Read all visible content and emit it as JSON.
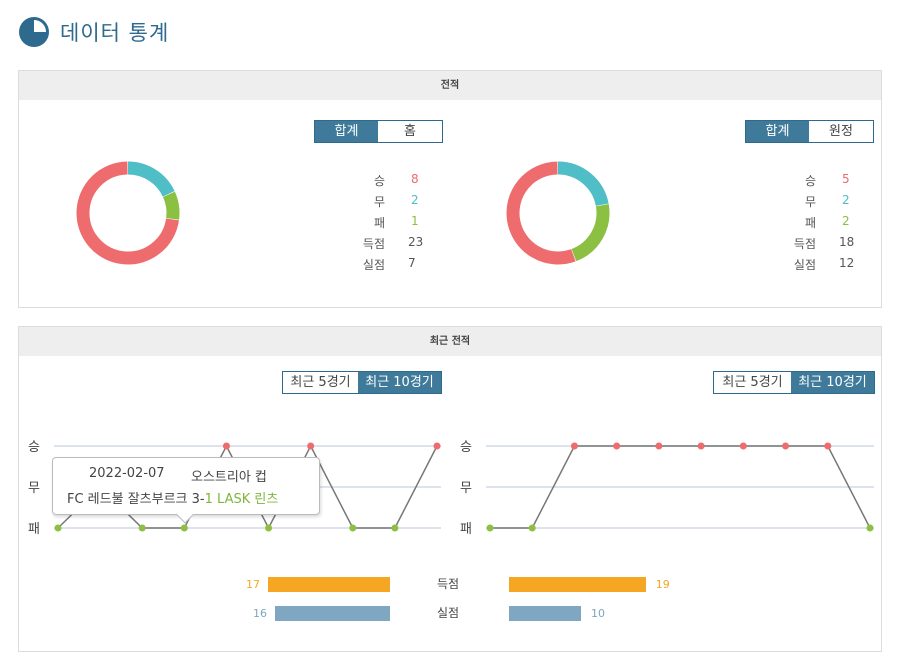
{
  "header": {
    "title": "데이터 통계"
  },
  "colors": {
    "win": "#ee6b6e",
    "draw": "#4fbec6",
    "loss": "#8cc043",
    "accent": "#3f7a9b",
    "gf": "#f5a623",
    "ga": "#7fa7c1"
  },
  "record": {
    "title": "전적",
    "left": {
      "tabs": [
        "합계",
        "홈"
      ],
      "active": 0,
      "stats": [
        {
          "label": "승",
          "value": "8"
        },
        {
          "label": "무",
          "value": "2"
        },
        {
          "label": "패",
          "value": "1"
        },
        {
          "label": "득점",
          "value": "23"
        },
        {
          "label": "실점",
          "value": "7"
        }
      ]
    },
    "right": {
      "tabs": [
        "합계",
        "원정"
      ],
      "active": 0,
      "stats": [
        {
          "label": "승",
          "value": "5"
        },
        {
          "label": "무",
          "value": "2"
        },
        {
          "label": "패",
          "value": "2"
        },
        {
          "label": "득점",
          "value": "18"
        },
        {
          "label": "실점",
          "value": "12"
        }
      ]
    }
  },
  "recent": {
    "title": "최근 전적",
    "left": {
      "tabs": [
        "최근 5경기",
        "최근 10경기"
      ],
      "active": 1,
      "results": [
        "L",
        "D",
        "L",
        "L",
        "W",
        "L",
        "W",
        "L",
        "L",
        "W"
      ]
    },
    "right": {
      "tabs": [
        "최근 5경기",
        "최근 10경기"
      ],
      "active": 1,
      "results": [
        "L",
        "L",
        "W",
        "W",
        "W",
        "W",
        "W",
        "W",
        "W",
        "L"
      ]
    },
    "y_labels": [
      "승",
      "무",
      "패"
    ],
    "tooltip": {
      "date": "2022-02-07",
      "competition": "오스트리아 컵",
      "home": "FC 레드불 잘츠부르크",
      "score_home": "3",
      "sep": "-",
      "score_away": "1",
      "away": "LASK 린츠"
    },
    "bars": {
      "gf": {
        "label": "득점",
        "left": 17,
        "right": 19
      },
      "ga": {
        "label": "실점",
        "left": 16,
        "right": 10
      }
    }
  }
}
